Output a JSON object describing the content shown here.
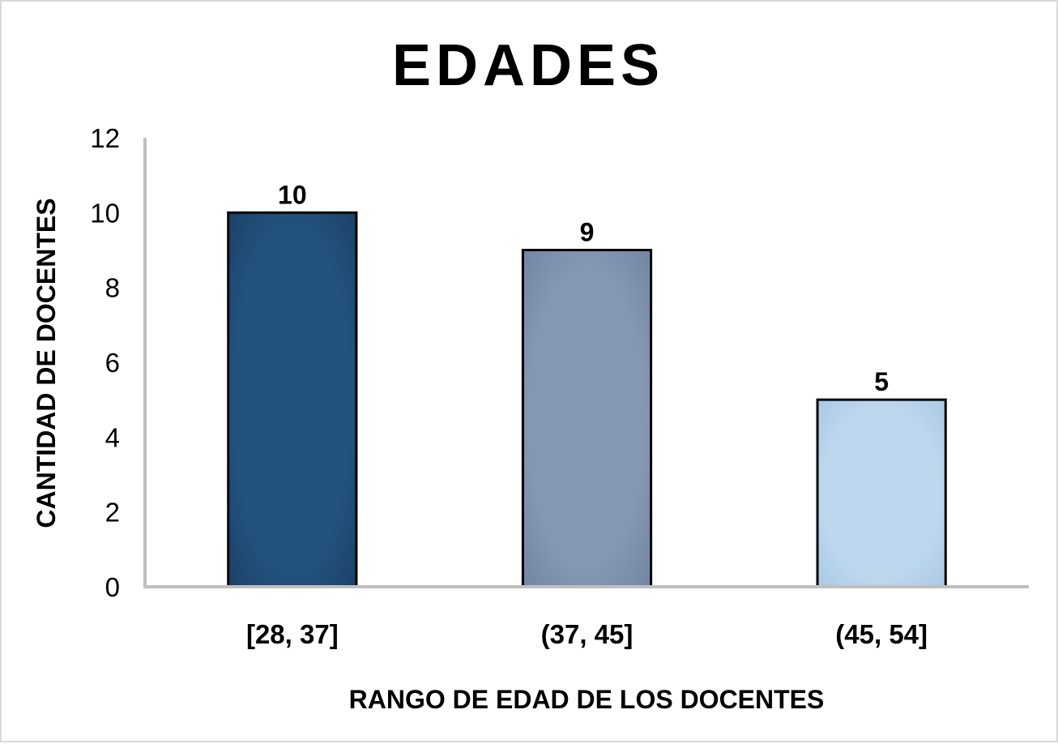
{
  "chart_data": {
    "type": "bar",
    "title": "EDADES",
    "xlabel": "RANGO DE EDAD DE LOS DOCENTES",
    "ylabel": "CANTIDAD DE DOCENTES",
    "categories": [
      "[28, 37]",
      "(37, 45]",
      "(45, 54]"
    ],
    "values": [
      10,
      9,
      5
    ],
    "data_labels": [
      "10",
      "9",
      "5"
    ],
    "ylim": [
      0,
      12
    ],
    "yticks": [
      "0",
      "2",
      "4",
      "6",
      "8",
      "10",
      "12"
    ],
    "grid": false,
    "legend": "none",
    "bar_colors": [
      "#23527f",
      "#8497b3",
      "#bdd7ee"
    ],
    "axis_color": "#bfbfbf"
  }
}
